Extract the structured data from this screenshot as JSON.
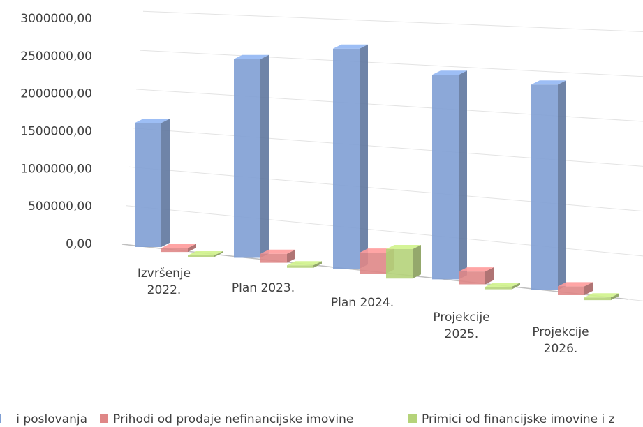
{
  "chart_data": {
    "type": "bar3d",
    "categories": [
      "Izvršenje 2022.",
      "Plan 2023.",
      "Plan 2024.",
      "Projekcije 2025.",
      "Projekcije 2026."
    ],
    "series": [
      {
        "name": "i poslovanja",
        "color": "#7f9fd4",
        "values": [
          1580000,
          2460000,
          2650000,
          2400000,
          2350000
        ]
      },
      {
        "name": "Prihodi od prodaje nefinancijske imovine",
        "color": "#df8787",
        "values": [
          50000,
          110000,
          250000,
          150000,
          100000
        ]
      },
      {
        "name": "Primici od financijske imovine i z",
        "color": "#b5d37a",
        "values": [
          20000,
          30000,
          350000,
          30000,
          30000
        ]
      }
    ],
    "ylim": [
      0,
      3000000
    ],
    "yticks": [
      {
        "value": 0,
        "label": "0,00"
      },
      {
        "value": 500000,
        "label": "500000,00"
      },
      {
        "value": 1000000,
        "label": "1000000,00"
      },
      {
        "value": 1500000,
        "label": "1500000,00"
      },
      {
        "value": 2000000,
        "label": "2000000,00"
      },
      {
        "value": 2500000,
        "label": "2500000,00"
      },
      {
        "value": 3000000,
        "label": "3000000,00"
      }
    ],
    "grid": true,
    "legend": "bottom"
  }
}
